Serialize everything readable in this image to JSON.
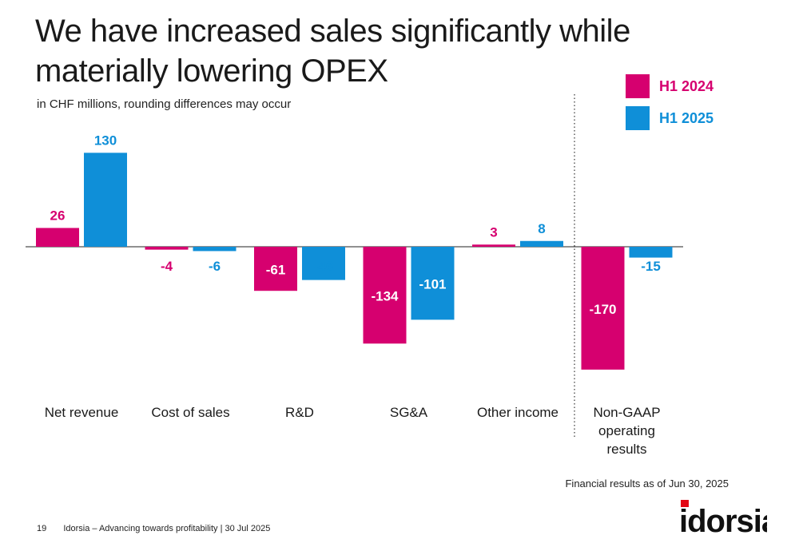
{
  "header": {
    "title": "We have increased sales significantly while materially lowering OPEX",
    "subtitle": "in CHF millions, rounding differences may occur"
  },
  "chart_data": {
    "type": "bar",
    "title": "We have increased sales significantly while materially lowering OPEX",
    "subtitle": "in CHF millions, rounding differences may occur",
    "categories": [
      "Net revenue",
      "Cost of sales",
      "R&D",
      "SG&A",
      "Other income",
      "Non-GAAP operating results"
    ],
    "series": [
      {
        "name": "H1 2024",
        "color": "#d6006f",
        "values": [
          26,
          -4,
          -61,
          -134,
          3,
          -170
        ]
      },
      {
        "name": "H1 2025",
        "color": "#0f8fd8",
        "values": [
          130,
          -6,
          -46,
          -101,
          8,
          -15
        ]
      }
    ],
    "xlabel": "",
    "ylabel": "",
    "legend": "top-right",
    "grid": false
  },
  "footnote": "Financial results as of Jun 30, 2025",
  "footer": {
    "page_number": "19",
    "text": "Idorsia – Advancing towards profitability | 30 Jul 2025"
  },
  "logo": {
    "text": "idorsia",
    "accent": "#e30613"
  }
}
